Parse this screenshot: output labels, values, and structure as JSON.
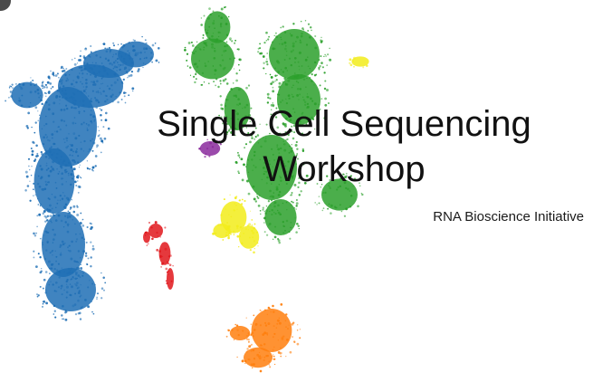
{
  "slide": {
    "title_line1": "Single Cell Sequencing",
    "title_line2": "Workshop",
    "subtitle": "RNA Bioscience Initiative"
  },
  "colors": {
    "blue": "#1f6fb5",
    "green": "#2ca02c",
    "yellow": "#f2ec1a",
    "purple": "#8a2a9c",
    "red": "#e0161b",
    "orange": "#ff7f0e"
  }
}
